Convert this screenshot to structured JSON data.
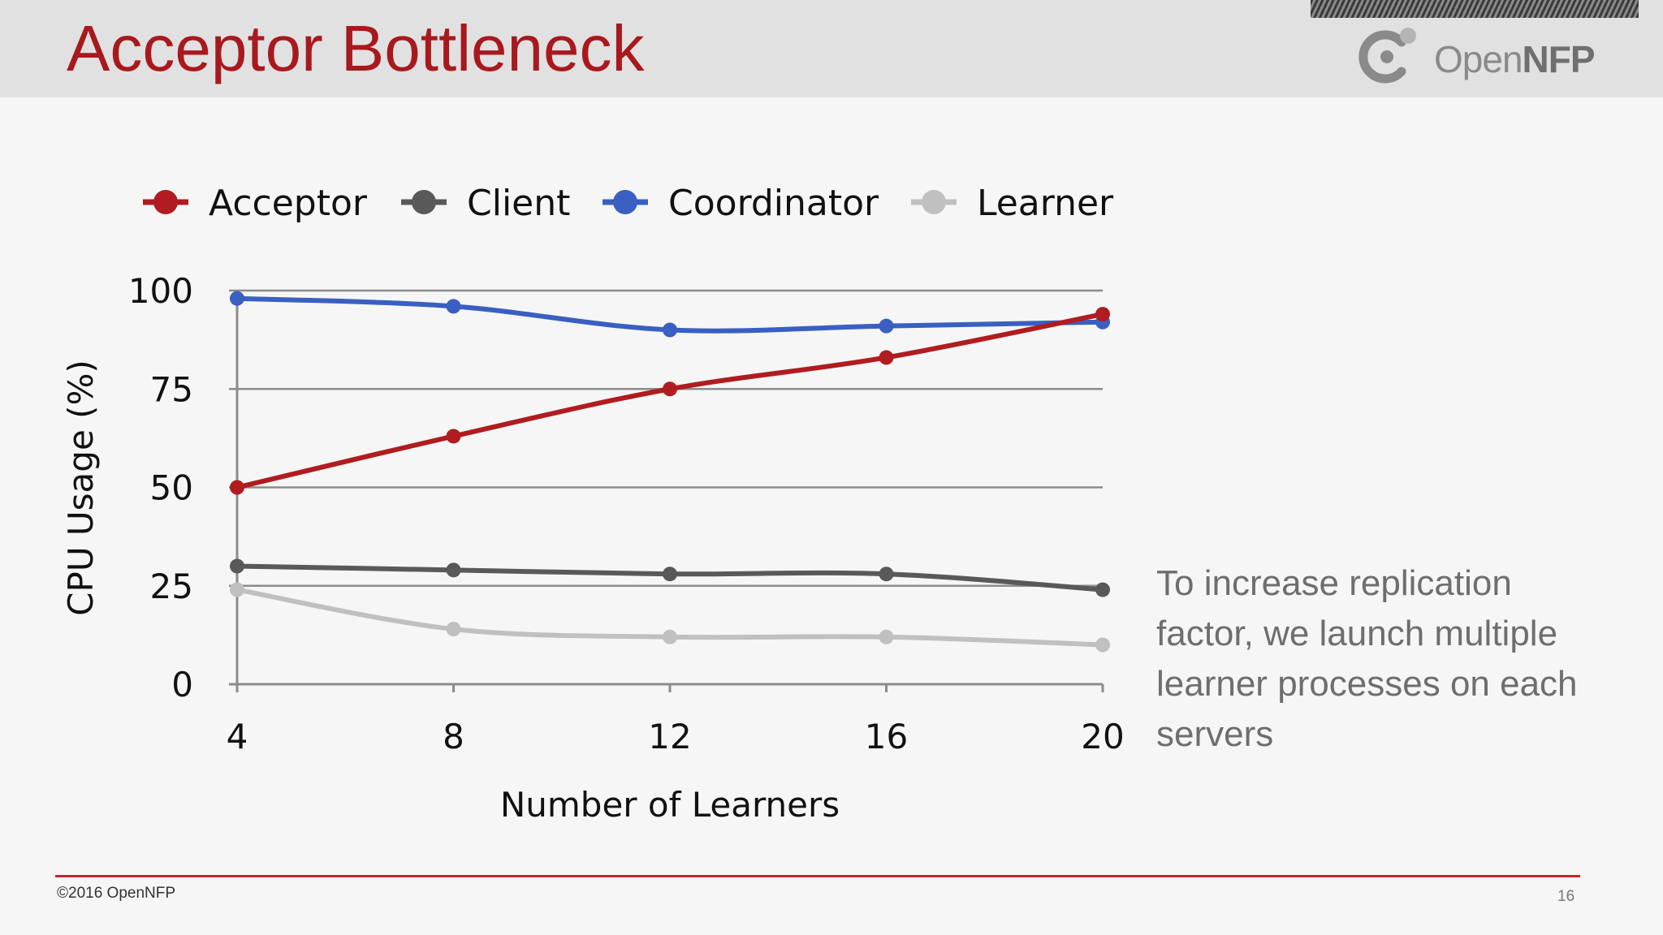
{
  "slide": {
    "title": "Acceptor Bottleneck",
    "logo_text_light": "Open",
    "logo_text_bold": "NFP",
    "caption": "To increase replication factor, we launch multiple learner processes on each servers",
    "copyright": "©2016 OpenNFP",
    "page_number": "16"
  },
  "colors": {
    "title": "#a8191e",
    "rule": "#c0282d"
  },
  "chart_data": {
    "type": "line",
    "title": "",
    "xlabel": "Number of Learners",
    "ylabel": "CPU Usage (%)",
    "x": [
      4,
      8,
      12,
      16,
      20
    ],
    "xlim": [
      4,
      20
    ],
    "ylim": [
      0,
      100
    ],
    "yticks": [
      0,
      25,
      50,
      75,
      100
    ],
    "grid": true,
    "legend_position": "top",
    "series": [
      {
        "name": "Acceptor",
        "color": "#b01c1f",
        "values": [
          50,
          63,
          75,
          83,
          94
        ]
      },
      {
        "name": "Client",
        "color": "#595959",
        "values": [
          30,
          29,
          28,
          28,
          24
        ]
      },
      {
        "name": "Coordinator",
        "color": "#3a5fc2",
        "values": [
          98,
          96,
          90,
          91,
          92
        ]
      },
      {
        "name": "Learner",
        "color": "#c0c0c0",
        "values": [
          24,
          14,
          12,
          12,
          10
        ]
      }
    ]
  }
}
